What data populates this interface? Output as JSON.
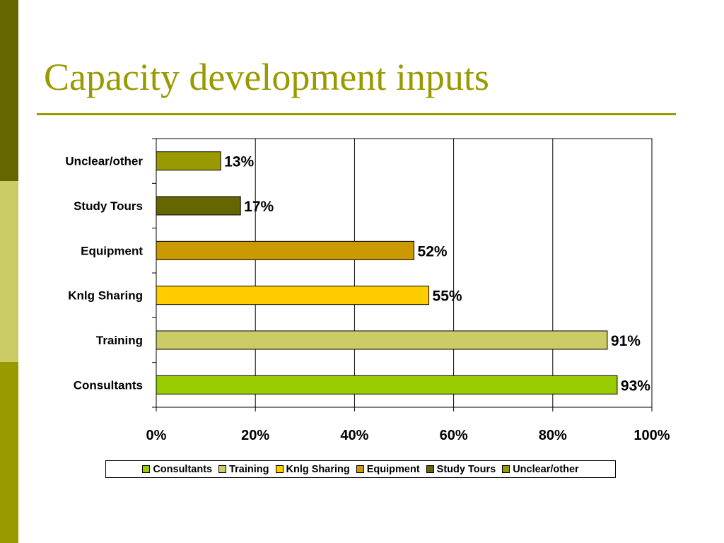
{
  "slide": {
    "title": "Capacity development inputs",
    "accent_color": "#999900",
    "side_strip_colors": [
      "#666600",
      "#cccc66",
      "#999900"
    ]
  },
  "chart_data": {
    "type": "bar",
    "orientation": "horizontal",
    "categories": [
      "Consultants",
      "Training",
      "Knlg Sharing",
      "Equipment",
      "Study Tours",
      "Unclear/other"
    ],
    "values": [
      93,
      91,
      55,
      52,
      17,
      13
    ],
    "value_labels": [
      "93%",
      "91%",
      "55%",
      "52%",
      "17%",
      "13%"
    ],
    "colors": [
      "#99cc00",
      "#cccc66",
      "#ffcc00",
      "#cc9900",
      "#666600",
      "#999900"
    ],
    "xlim": [
      0,
      100
    ],
    "xticks": [
      0,
      20,
      40,
      60,
      80,
      100
    ],
    "xtick_labels": [
      "0%",
      "20%",
      "40%",
      "60%",
      "80%",
      "100%"
    ],
    "grid": true,
    "legend_position": "bottom"
  }
}
